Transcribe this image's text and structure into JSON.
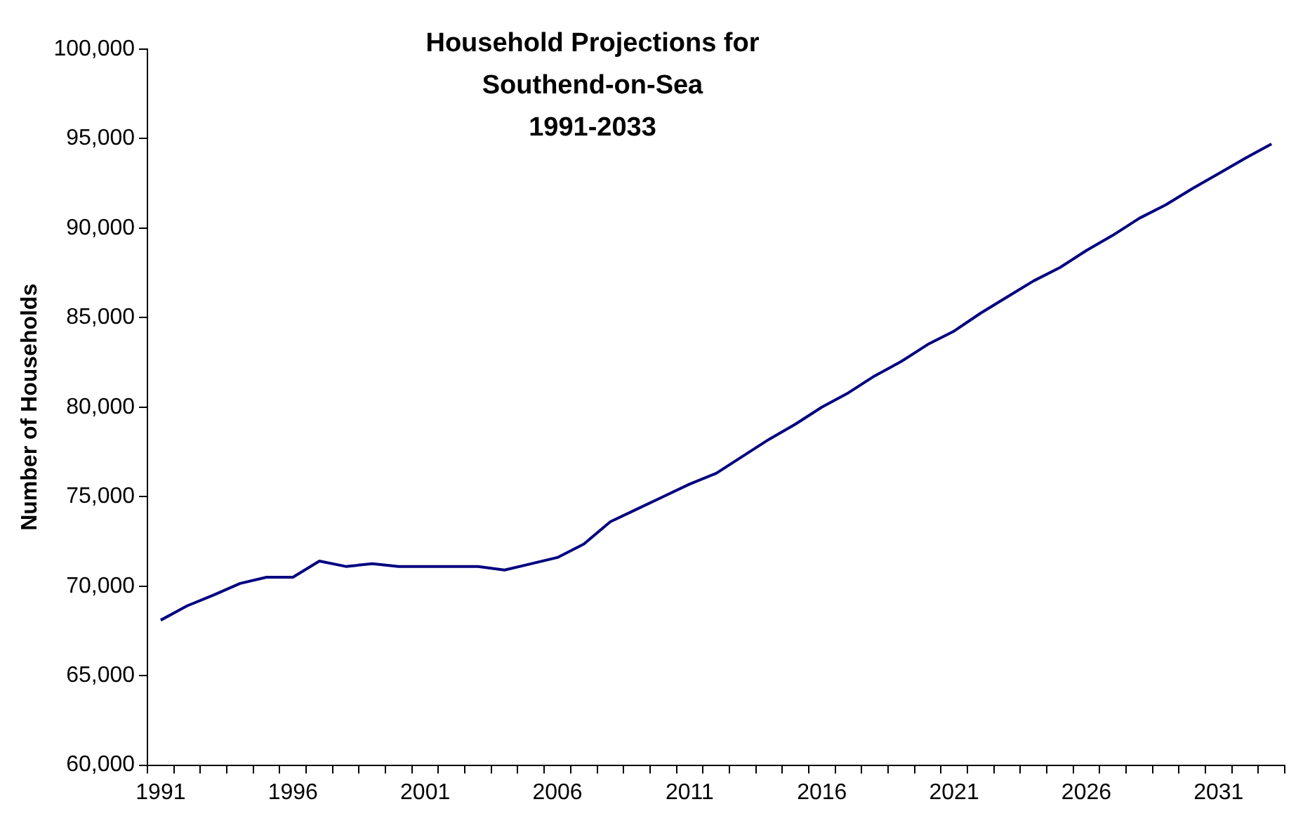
{
  "chart_data": {
    "type": "line",
    "title": "Household Projections for\nSouthend-on-Sea\n1991-2033",
    "ylabel": "Number of Households",
    "categories": [
      "1991",
      null,
      null,
      null,
      null,
      "1996",
      null,
      null,
      null,
      null,
      "2001",
      null,
      null,
      null,
      null,
      "2006",
      null,
      null,
      null,
      null,
      "2011",
      null,
      null,
      null,
      null,
      "2016",
      null,
      null,
      null,
      null,
      "2021",
      null,
      null,
      null,
      null,
      "2026",
      null,
      null,
      null,
      null,
      "2031",
      null,
      null
    ],
    "series": [
      {
        "color": "#000080",
        "values": [
          68100,
          68900,
          69500,
          70150,
          70500,
          70500,
          71400,
          71100,
          71250,
          71100,
          71100,
          71100,
          71100,
          70900,
          71250,
          71600,
          72350,
          73600,
          74300,
          75000,
          75700,
          76300,
          77250,
          78200,
          79050,
          80000,
          80800,
          81750,
          82550,
          83500,
          84250,
          85250,
          86150,
          87050,
          87800,
          88750,
          89600,
          90550,
          91300,
          92200,
          93050,
          93900,
          94700
        ]
      }
    ],
    "ylim": [
      60000,
      100000
    ],
    "yticks": [
      {
        "value": 60000,
        "label": "60,000"
      },
      {
        "value": 65000,
        "label": "65,000"
      },
      {
        "value": 70000,
        "label": "70,000"
      },
      {
        "value": 75000,
        "label": "75,000"
      },
      {
        "value": 80000,
        "label": "80,000"
      },
      {
        "value": 85000,
        "label": "85,000"
      },
      {
        "value": 90000,
        "label": "90,000"
      },
      {
        "value": 95000,
        "label": "95,000"
      },
      {
        "value": 100000,
        "label": "100,000"
      }
    ],
    "grid": false,
    "legend": false,
    "marker": "none",
    "line_style": "solid"
  }
}
